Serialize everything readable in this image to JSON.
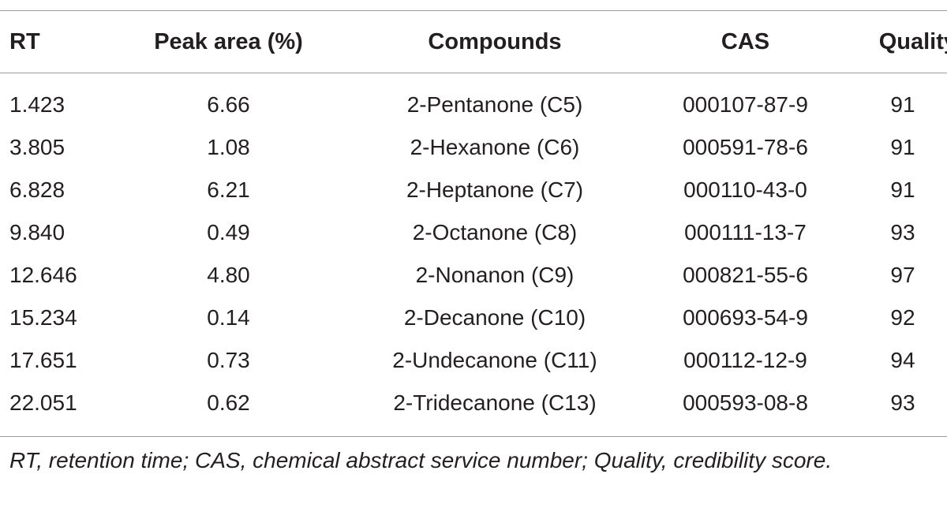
{
  "table": {
    "headers": [
      "RT",
      "Peak area (%)",
      "Compounds",
      "CAS",
      "Quality"
    ],
    "rows": [
      [
        "1.423",
        "6.66",
        "2-Pentanone (C5)",
        "000107-87-9",
        "91"
      ],
      [
        "3.805",
        "1.08",
        "2-Hexanone (C6)",
        "000591-78-6",
        "91"
      ],
      [
        "6.828",
        "6.21",
        "2-Heptanone (C7)",
        "000110-43-0",
        "91"
      ],
      [
        "9.840",
        "0.49",
        "2-Octanone (C8)",
        "000111-13-7",
        "93"
      ],
      [
        "12.646",
        "4.80",
        "2-Nonanon (C9)",
        "000821-55-6",
        "97"
      ],
      [
        "15.234",
        "0.14",
        "2-Decanone (C10)",
        "000693-54-9",
        "92"
      ],
      [
        "17.651",
        "0.73",
        "2-Undecanone (C11)",
        "000112-12-9",
        "94"
      ],
      [
        "22.051",
        "0.62",
        "2-Tridecanone (C13)",
        "000593-08-8",
        "93"
      ]
    ]
  },
  "footnote": "RT, retention time; CAS, chemical abstract service number; Quality, credibility score."
}
